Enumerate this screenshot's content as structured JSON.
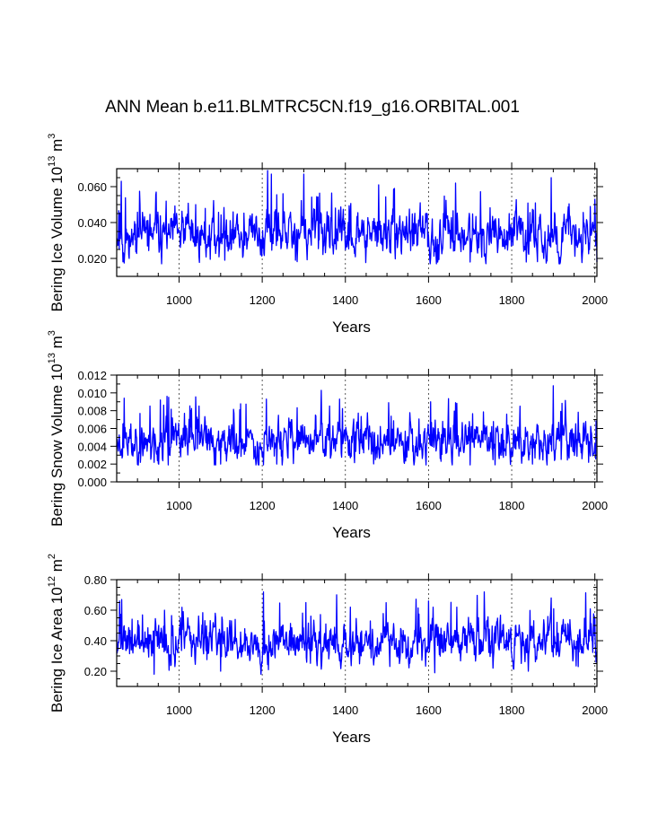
{
  "title": "ANN Mean b.e11.BLMTRC5CN.f19_g16.ORBITAL.001",
  "chart_data": [
    {
      "type": "line",
      "ylabel": {
        "text": "Bering Ice Volume 10",
        "exp1": "13",
        "mid": " m",
        "exp2": "3"
      },
      "xlabel": "Years",
      "xlim": [
        850,
        2005
      ],
      "ylim": [
        0.01,
        0.07
      ],
      "xticks": [
        1000,
        1200,
        1400,
        1600,
        1800,
        2000
      ],
      "xtick_labels": [
        "1000",
        "1200",
        "1400",
        "1600",
        "1800",
        "2000"
      ],
      "yticks": [
        0.02,
        0.04,
        0.06
      ],
      "ytick_labels": [
        "0.020",
        "0.040",
        "0.060"
      ],
      "y_minor_step": 0.005,
      "series": [
        {
          "name": "Bering Ice Volume",
          "color": "#0000ff",
          "base": 0.033,
          "amp": 0.0065,
          "min": 0.017,
          "max": 0.069,
          "seed": 11,
          "peaks": [
            [
              861,
              0.063
            ],
            [
              945,
              0.057
            ],
            [
              1040,
              0.05
            ],
            [
              1213,
              0.069
            ],
            [
              1222,
              0.067
            ],
            [
              1300,
              0.067
            ],
            [
              1480,
              0.061
            ],
            [
              1518,
              0.059
            ],
            [
              1665,
              0.062
            ],
            [
              1895,
              0.065
            ],
            [
              2000,
              0.053
            ]
          ],
          "troughs": [
            [
              880,
              0.02
            ],
            [
              1110,
              0.019
            ],
            [
              1280,
              0.019
            ],
            [
              1700,
              0.018
            ],
            [
              1835,
              0.018
            ],
            [
              2005,
              0.018
            ]
          ]
        }
      ]
    },
    {
      "type": "line",
      "ylabel": {
        "text": "Bering Snow Volume 10",
        "exp1": "13",
        "mid": " m",
        "exp2": "3"
      },
      "xlabel": "Years",
      "xlim": [
        850,
        2005
      ],
      "ylim": [
        0.0,
        0.012
      ],
      "xticks": [
        1000,
        1200,
        1400,
        1600,
        1800,
        2000
      ],
      "xtick_labels": [
        "1000",
        "1200",
        "1400",
        "1600",
        "1800",
        "2000"
      ],
      "yticks": [
        0.0,
        0.002,
        0.004,
        0.006,
        0.008,
        0.01,
        0.012
      ],
      "ytick_labels": [
        "0.000",
        "0.002",
        "0.004",
        "0.006",
        "0.008",
        "0.010",
        "0.012"
      ],
      "y_minor_step": 0.001,
      "series": [
        {
          "name": "Bering Snow Volume",
          "color": "#0000ff",
          "base": 0.0046,
          "amp": 0.0012,
          "min": 0.0019,
          "max": 0.0108,
          "seed": 23,
          "peaks": [
            [
              868,
              0.0094
            ],
            [
              955,
              0.0092
            ],
            [
              975,
              0.0095
            ],
            [
              1210,
              0.0093
            ],
            [
              1605,
              0.009
            ],
            [
              1665,
              0.0089
            ],
            [
              1820,
              0.0085
            ],
            [
              1900,
              0.0108
            ]
          ],
          "troughs": [
            [
              940,
              0.0022
            ],
            [
              1100,
              0.002
            ],
            [
              1235,
              0.002
            ],
            [
              1700,
              0.0019
            ],
            [
              1850,
              0.002
            ],
            [
              1985,
              0.0022
            ]
          ]
        }
      ]
    },
    {
      "type": "line",
      "ylabel": {
        "text": "Bering Ice Area 10",
        "exp1": "12",
        "mid": " m",
        "exp2": "2"
      },
      "xlabel": "Years",
      "xlim": [
        850,
        2005
      ],
      "ylim": [
        0.1,
        0.8
      ],
      "xticks": [
        1000,
        1200,
        1400,
        1600,
        1800,
        2000
      ],
      "xtick_labels": [
        "1000",
        "1200",
        "1400",
        "1600",
        "1800",
        "2000"
      ],
      "yticks": [
        0.2,
        0.4,
        0.6,
        0.8
      ],
      "ytick_labels": [
        "0.20",
        "0.40",
        "0.60",
        "0.80"
      ],
      "y_minor_step": 0.05,
      "series": [
        {
          "name": "Bering Ice Area",
          "color": "#0000ff",
          "base": 0.39,
          "amp": 0.07,
          "min": 0.18,
          "max": 0.72,
          "seed": 37,
          "peaks": [
            [
              862,
              0.67
            ],
            [
              965,
              0.6
            ],
            [
              1203,
              0.72
            ],
            [
              1305,
              0.65
            ],
            [
              1600,
              0.66
            ],
            [
              1668,
              0.62
            ],
            [
              1895,
              0.68
            ],
            [
              2000,
              0.55
            ]
          ],
          "troughs": [
            [
              940,
              0.18
            ],
            [
              1100,
              0.2
            ],
            [
              1215,
              0.21
            ],
            [
              1615,
              0.19
            ],
            [
              1755,
              0.22
            ],
            [
              1840,
              0.2
            ],
            [
              1960,
              0.23
            ]
          ]
        }
      ]
    }
  ]
}
